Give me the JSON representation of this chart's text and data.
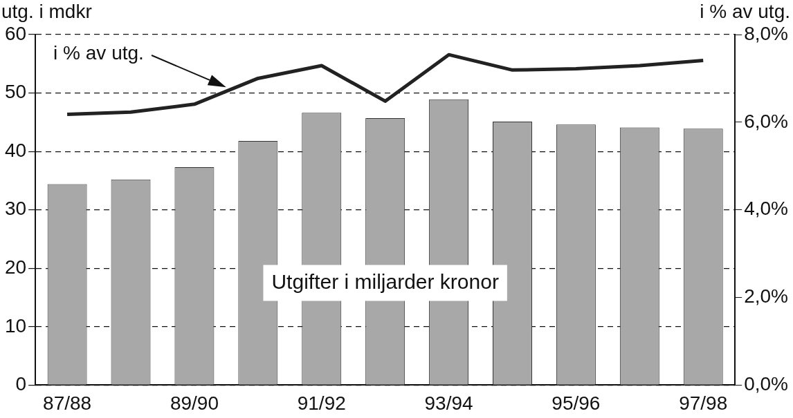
{
  "chart_data": {
    "type": "bar",
    "ylabel": "utg. i mdkr",
    "y2label": "i % av utg.",
    "categories": [
      "87/88",
      null,
      "89/90",
      null,
      "91/92",
      null,
      "93/94",
      null,
      "95/96",
      null,
      "97/98"
    ],
    "series": [
      {
        "name": "Utgifter i miljarder kronor",
        "color": "#a8a8a8",
        "values": [
          34.4,
          35.2,
          37.3,
          41.8,
          46.6,
          45.7,
          48.9,
          45.1,
          44.6,
          44.1,
          43.9
        ]
      },
      {
        "name": "i % av utg.",
        "type": "line",
        "axis": "y2",
        "color": "#222222",
        "values": [
          6.18,
          6.23,
          6.41,
          7.0,
          7.29,
          6.48,
          7.54,
          7.19,
          7.22,
          7.29,
          7.41
        ]
      }
    ],
    "ylim": [
      0,
      60
    ],
    "yticks": [
      0,
      10,
      20,
      30,
      40,
      50,
      60
    ],
    "y2lim": [
      0,
      8
    ],
    "y2ticks": [
      {
        "value": 0,
        "label": "0,0%"
      },
      {
        "value": 2,
        "label": "2,0%"
      },
      {
        "value": 4,
        "label": "4,0%"
      },
      {
        "value": 6,
        "label": "6,0%"
      },
      {
        "value": 8,
        "label": "8,0%"
      }
    ],
    "grid": "y",
    "legend": false,
    "marker": "none",
    "line_style": "solid"
  }
}
